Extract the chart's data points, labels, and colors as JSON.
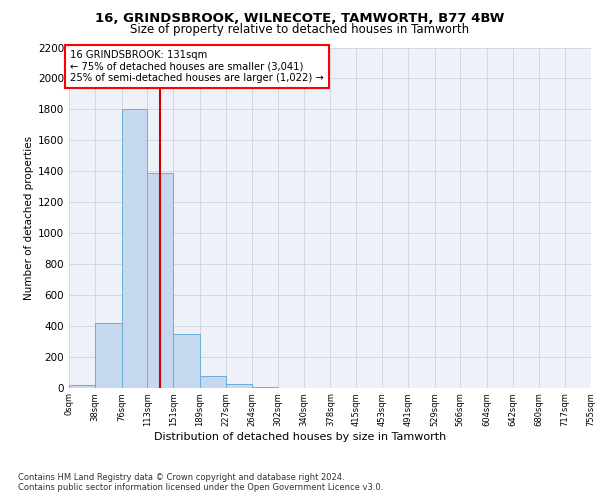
{
  "title1": "16, GRINDSBROOK, WILNECOTE, TAMWORTH, B77 4BW",
  "title2": "Size of property relative to detached houses in Tamworth",
  "xlabel": "Distribution of detached houses by size in Tamworth",
  "ylabel": "Number of detached properties",
  "footnote1": "Contains HM Land Registry data © Crown copyright and database right 2024.",
  "footnote2": "Contains public sector information licensed under the Open Government Licence v3.0.",
  "annotation_line1": "16 GRINDSBROOK: 131sqm",
  "annotation_line2": "← 75% of detached houses are smaller (3,041)",
  "annotation_line3": "25% of semi-detached houses are larger (1,022) →",
  "bar_left_edges": [
    0,
    38,
    76,
    113,
    151,
    189,
    227,
    264,
    302,
    340,
    378,
    415,
    453,
    491,
    529,
    566,
    604,
    642,
    680,
    717
  ],
  "bar_widths": [
    38,
    38,
    37,
    38,
    38,
    38,
    37,
    38,
    38,
    38,
    37,
    38,
    38,
    38,
    37,
    38,
    38,
    38,
    37,
    38
  ],
  "bar_heights": [
    15,
    420,
    1800,
    1390,
    345,
    75,
    20,
    5,
    0,
    0,
    0,
    0,
    0,
    0,
    0,
    0,
    0,
    0,
    0,
    0
  ],
  "bar_color": "#c5d8f0",
  "bar_edgecolor": "#6aaed6",
  "tick_labels": [
    "0sqm",
    "38sqm",
    "76sqm",
    "113sqm",
    "151sqm",
    "189sqm",
    "227sqm",
    "264sqm",
    "302sqm",
    "340sqm",
    "378sqm",
    "415sqm",
    "453sqm",
    "491sqm",
    "529sqm",
    "566sqm",
    "604sqm",
    "642sqm",
    "680sqm",
    "717sqm",
    "755sqm"
  ],
  "ylim": [
    0,
    2200
  ],
  "yticks": [
    0,
    200,
    400,
    600,
    800,
    1000,
    1200,
    1400,
    1600,
    1800,
    2000,
    2200
  ],
  "vline_x": 131,
  "vline_color": "#cc0000",
  "grid_color": "#d0d8e8",
  "plot_bg_color": "#eef2f8"
}
